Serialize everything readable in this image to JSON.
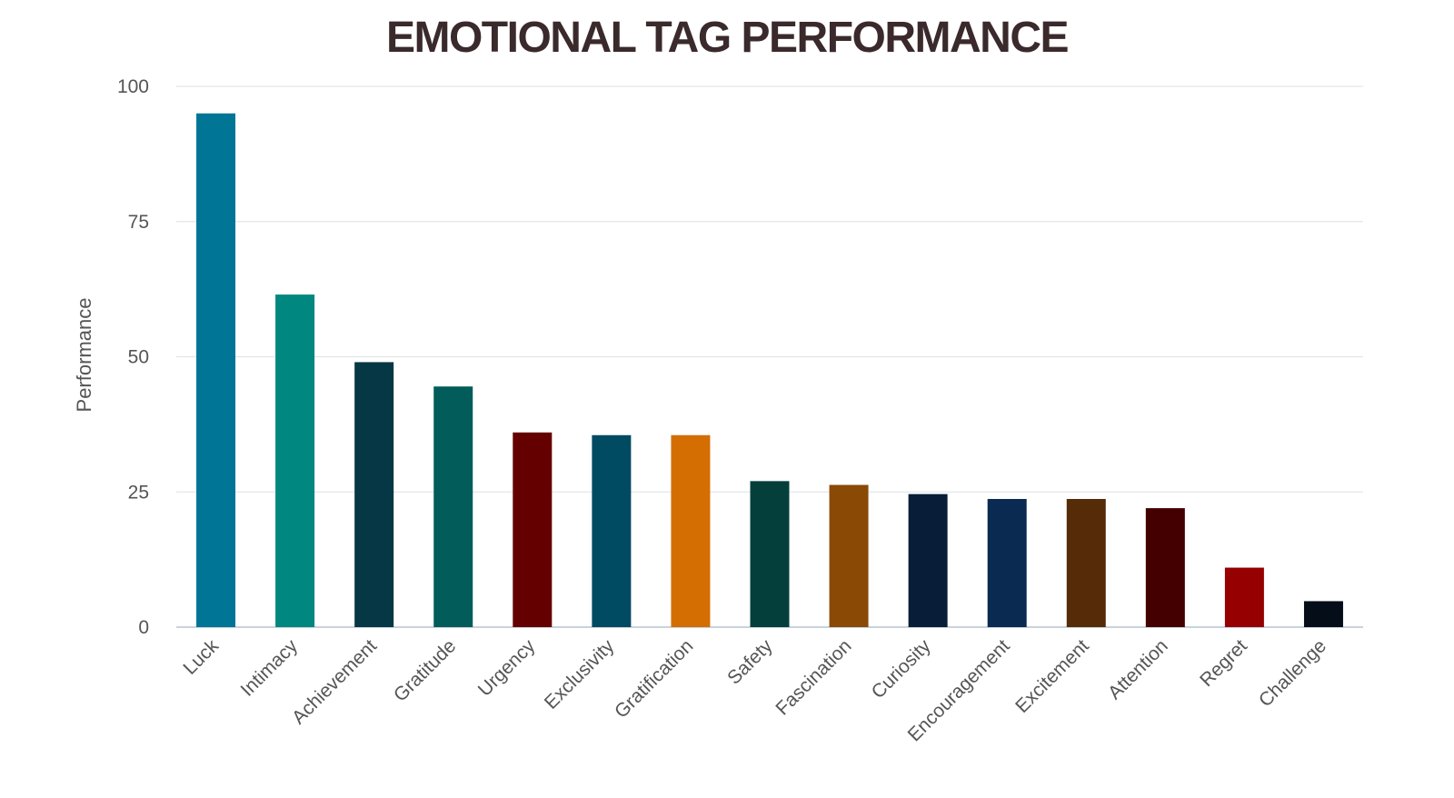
{
  "chart_data": {
    "type": "bar",
    "title": "EMOTIONAL TAG PERFORMANCE",
    "xlabel": "",
    "ylabel": "Performance",
    "ylim": [
      0,
      100
    ],
    "yticks": [
      "0",
      "25",
      "50",
      "75",
      "100"
    ],
    "grid": true,
    "legend": "none",
    "categories": [
      "Luck",
      "Intimacy",
      "Achievement",
      "Gratitude",
      "Urgency",
      "Exclusivity",
      "Gratification",
      "Safety",
      "Fascination",
      "Curiosity",
      "Encouragement",
      "Excitement",
      "Attention",
      "Regret",
      "Challenge"
    ],
    "values": [
      95,
      61.5,
      49,
      44.5,
      36,
      35.5,
      35.5,
      27,
      26.3,
      24.6,
      23.7,
      23.7,
      22,
      11,
      4.8
    ],
    "colors": [
      "#007596",
      "#00877f",
      "#063745",
      "#025d5a",
      "#650000",
      "#004a62",
      "#d46e03",
      "#053f3b",
      "#8a4904",
      "#081d37",
      "#0a2a52",
      "#552c07",
      "#440000",
      "#960000",
      "#050d18"
    ]
  }
}
